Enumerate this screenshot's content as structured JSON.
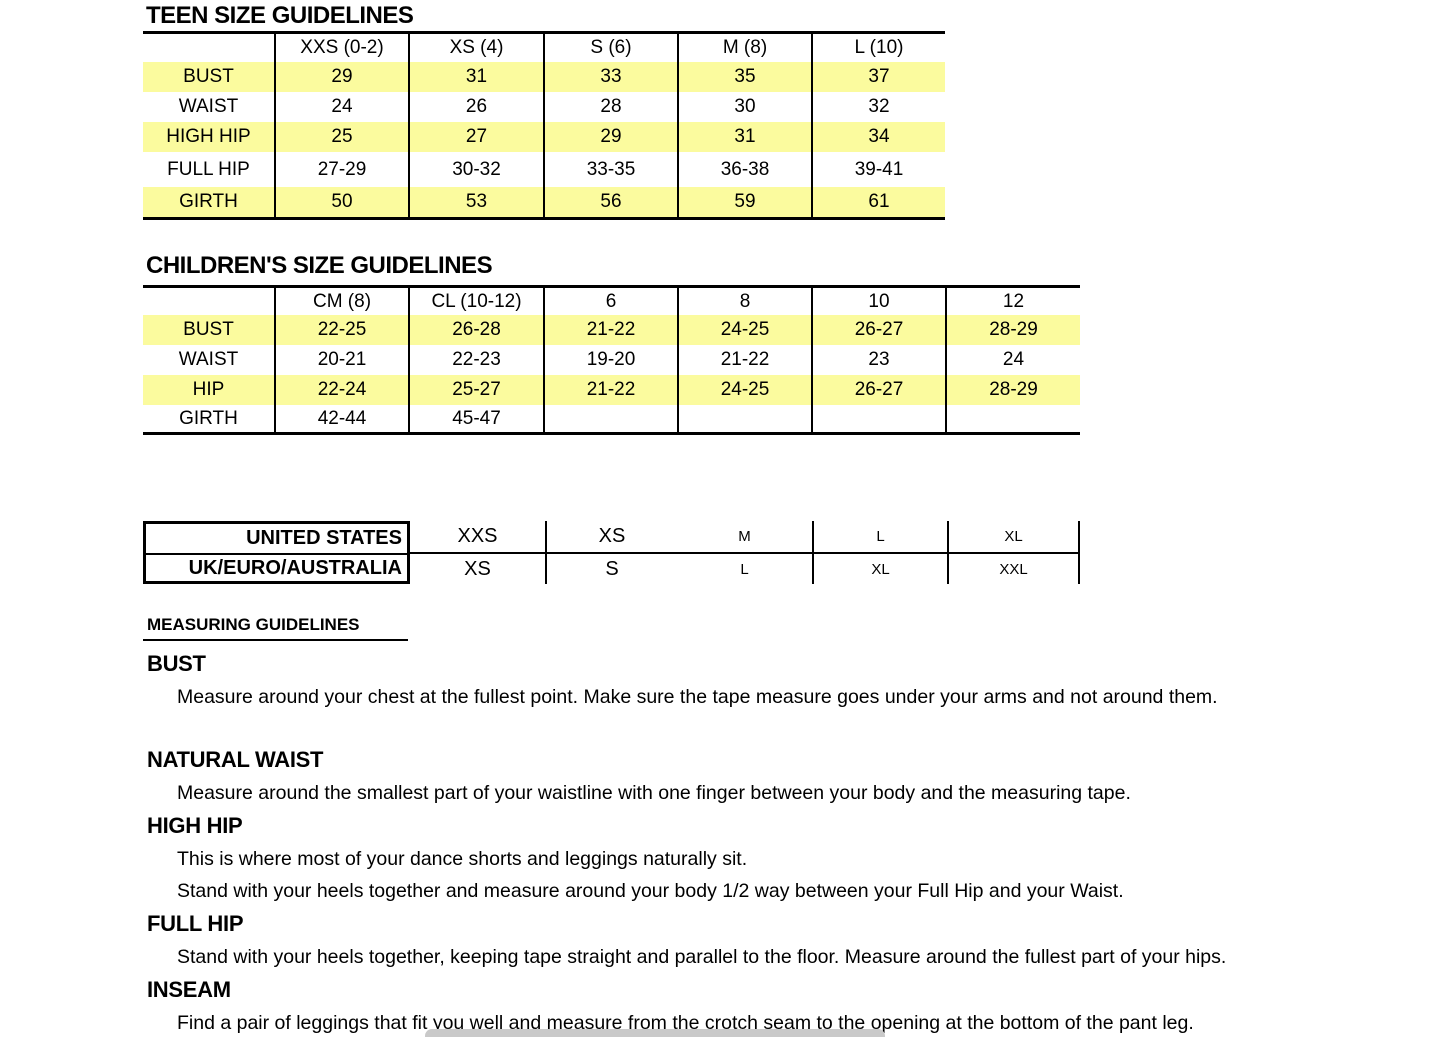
{
  "teen_table": {
    "title": "TEEN SIZE GUIDELINES",
    "col_headers": [
      "",
      "XXS (0-2)",
      "XS (4)",
      "S (6)",
      "M (8)",
      "L (10)"
    ],
    "rows": [
      {
        "label": "BUST",
        "values": [
          "29",
          "31",
          "33",
          "35",
          "37"
        ]
      },
      {
        "label": "WAIST",
        "values": [
          "24",
          "26",
          "28",
          "30",
          "32"
        ]
      },
      {
        "label": "HIGH HIP",
        "values": [
          "25",
          "27",
          "29",
          "31",
          "34"
        ]
      },
      {
        "label": "FULL HIP",
        "values": [
          "27-29",
          "30-32",
          "33-35",
          "36-38",
          "39-41"
        ]
      },
      {
        "label": "GIRTH",
        "values": [
          "50",
          "53",
          "56",
          "59",
          "61"
        ]
      }
    ]
  },
  "children_table": {
    "title": "CHILDREN'S SIZE GUIDELINES",
    "col_headers": [
      "",
      "CM (8)",
      "CL (10-12)",
      "6",
      "8",
      "10",
      "12"
    ],
    "rows": [
      {
        "label": "BUST",
        "values": [
          "22-25",
          "26-28",
          "21-22",
          "24-25",
          "26-27",
          "28-29"
        ]
      },
      {
        "label": "WAIST",
        "values": [
          "20-21",
          "22-23",
          "19-20",
          "21-22",
          "23",
          "24"
        ]
      },
      {
        "label": "HIP",
        "values": [
          "22-24",
          "25-27",
          "21-22",
          "24-25",
          "26-27",
          "28-29"
        ]
      },
      {
        "label": "GIRTH",
        "values": [
          "42-44",
          "45-47",
          "",
          "",
          "",
          ""
        ]
      }
    ]
  },
  "conversion_table": {
    "rows": [
      {
        "label": "UNITED STATES",
        "values": [
          "XXS",
          "XS",
          "M",
          "L",
          "XL"
        ]
      },
      {
        "label": "UK/EURO/AUSTRALIA",
        "values": [
          "XS",
          "S",
          "L",
          "XL",
          "XXL"
        ]
      }
    ]
  },
  "measuring": {
    "title": "MEASURING GUIDELINES",
    "sections": [
      {
        "heading": "BUST",
        "lines": [
          "Measure around your chest at the fullest point. Make sure the tape measure goes under your arms and not around them."
        ]
      },
      {
        "heading": "NATURAL WAIST",
        "lines": [
          "Measure around the smallest part of your waistline with one finger between your body and the measuring tape."
        ]
      },
      {
        "heading": "HIGH HIP",
        "lines": [
          "This is where most of your dance shorts and leggings naturally sit.",
          "Stand with your heels together and measure around your body 1/2 way between your Full Hip and your Waist."
        ]
      },
      {
        "heading": "FULL HIP",
        "lines": [
          "Stand with your heels together, keeping tape straight and parallel to the floor. Measure around the fullest part of your hips."
        ]
      },
      {
        "heading": "INSEAM",
        "lines": [
          "Find a pair of leggings that fit you well and measure from the crotch seam to the opening at the bottom of the pant leg."
        ]
      }
    ]
  },
  "colors": {
    "row_highlight": "#fbfb9e",
    "table_border": "#000000",
    "scrollbar_thumb": "#c9c9c9"
  }
}
